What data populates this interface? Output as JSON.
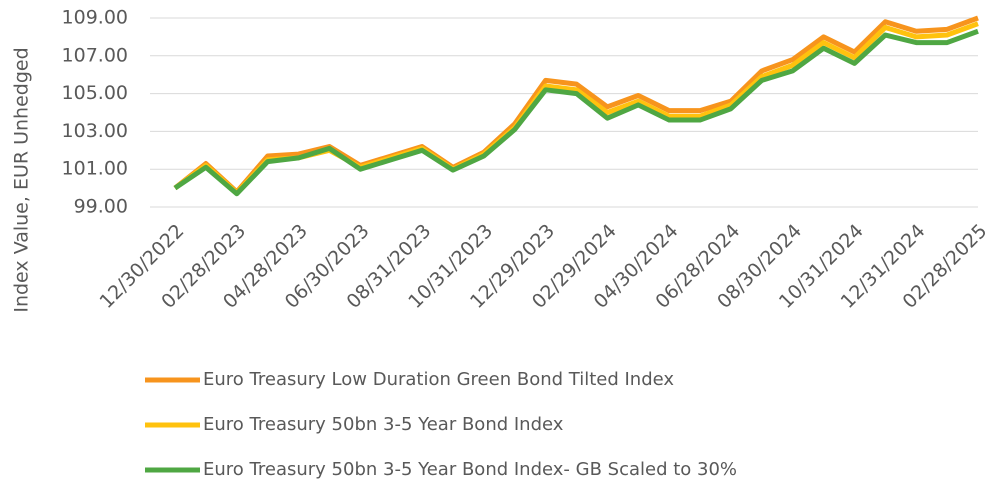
{
  "chart_data": {
    "type": "line",
    "y_label": "Index Value, EUR Unhedged",
    "categories": [
      "12/30/2022",
      null,
      "02/28/2023",
      null,
      "04/28/2023",
      null,
      "06/30/2023",
      null,
      "08/31/2023",
      null,
      "10/31/2023",
      null,
      "12/29/2023",
      null,
      "02/29/2024",
      null,
      "04/30/2024",
      null,
      "06/28/2024",
      null,
      "08/30/2024",
      null,
      "10/31/2024",
      null,
      "12/31/2024",
      null,
      "02/28/2025"
    ],
    "ylim": [
      99,
      109
    ],
    "yticks": [
      {
        "value": 99,
        "label": "99.00"
      },
      {
        "value": 101,
        "label": "101.00"
      },
      {
        "value": 103,
        "label": "103.00"
      },
      {
        "value": 105,
        "label": "105.00"
      },
      {
        "value": 107,
        "label": "107.00"
      },
      {
        "value": 109,
        "label": "109.00"
      }
    ],
    "grid": true,
    "series": [
      {
        "name": "Euro Treasury Low Duration Green Bond Tilted Index",
        "color": "#f7941d",
        "values": [
          100.0,
          101.3,
          99.8,
          101.7,
          101.8,
          102.2,
          101.2,
          101.7,
          102.2,
          101.1,
          101.9,
          103.4,
          105.7,
          105.5,
          104.3,
          104.9,
          104.1,
          104.1,
          104.6,
          106.2,
          106.8,
          108.0,
          107.2,
          108.8,
          108.3,
          108.4,
          109.0
        ]
      },
      {
        "name": "Euro Treasury 50bn 3-5 Year Bond Index",
        "color": "#ffc20e",
        "values": [
          100.0,
          101.2,
          99.75,
          101.5,
          101.6,
          102.0,
          101.1,
          101.6,
          102.1,
          101.0,
          101.8,
          103.2,
          105.4,
          105.2,
          104.0,
          104.6,
          103.8,
          103.8,
          104.4,
          105.9,
          106.5,
          107.7,
          106.9,
          108.5,
          108.0,
          108.1,
          108.7
        ]
      },
      {
        "name": "Euro Treasury 50bn 3-5 Year Bond Index- GB Scaled to 30%",
        "color": "#4fa743",
        "values": [
          100.0,
          101.1,
          99.7,
          101.4,
          101.6,
          102.1,
          101.0,
          101.5,
          102.0,
          100.95,
          101.7,
          103.1,
          105.2,
          105.0,
          103.7,
          104.4,
          103.6,
          103.6,
          104.2,
          105.7,
          106.2,
          107.4,
          106.6,
          108.1,
          107.7,
          107.7,
          108.3
        ]
      }
    ]
  }
}
